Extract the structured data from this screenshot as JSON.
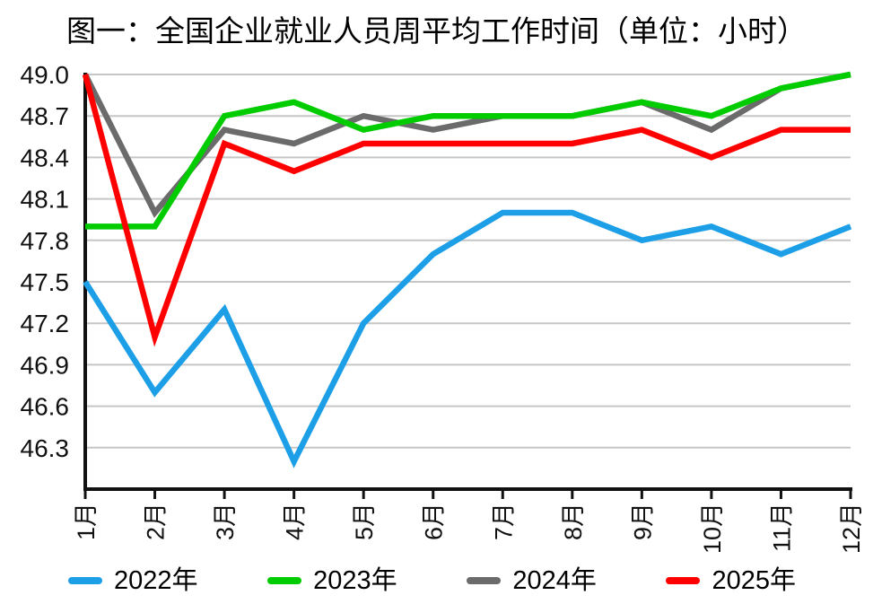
{
  "title": "图一：全国企业就业人员周平均工作时间（单位：小时）",
  "chart_data": {
    "type": "line",
    "title": "图一：全国企业就业人员周平均工作时间（单位：小时）",
    "xlabel": "",
    "ylabel": "",
    "categories": [
      "1月",
      "2月",
      "3月",
      "4月",
      "5月",
      "6月",
      "7月",
      "8月",
      "9月",
      "10月",
      "11月",
      "12月"
    ],
    "series": [
      {
        "name": "2022年",
        "color": "#1D9FE8",
        "values": [
          47.5,
          46.7,
          47.3,
          46.2,
          47.2,
          47.7,
          48.0,
          48.0,
          47.8,
          47.9,
          47.7,
          47.9
        ]
      },
      {
        "name": "2023年",
        "color": "#00CC00",
        "values": [
          47.9,
          47.9,
          48.7,
          48.8,
          48.6,
          48.7,
          48.7,
          48.7,
          48.8,
          48.7,
          48.9,
          49.0
        ]
      },
      {
        "name": "2024年",
        "color": "#6B6B6B",
        "values": [
          49.0,
          48.0,
          48.6,
          48.5,
          48.7,
          48.6,
          48.7,
          48.7,
          48.8,
          48.6,
          48.9,
          49.0
        ]
      },
      {
        "name": "2025年",
        "color": "#FF0000",
        "values": [
          49.0,
          47.1,
          48.5,
          48.3,
          48.5,
          48.5,
          48.5,
          48.5,
          48.6,
          48.4,
          48.6,
          48.6
        ]
      }
    ],
    "draw_order": [
      0,
      2,
      1,
      3
    ],
    "ylim": [
      46.0,
      49.0
    ],
    "yticks": [
      49.0,
      48.7,
      48.4,
      48.1,
      47.8,
      47.5,
      47.2,
      46.9,
      46.6,
      46.3
    ],
    "ytick_labels": [
      "49.0",
      "48.7",
      "48.4",
      "48.1",
      "47.8",
      "47.5",
      "47.2",
      "46.9",
      "46.6",
      "46.3"
    ],
    "grid": "horizontal",
    "legend_position": "bottom",
    "axis_color": "#111111",
    "grid_color": "#C6C6C6",
    "tick_label_color": "#111111"
  }
}
